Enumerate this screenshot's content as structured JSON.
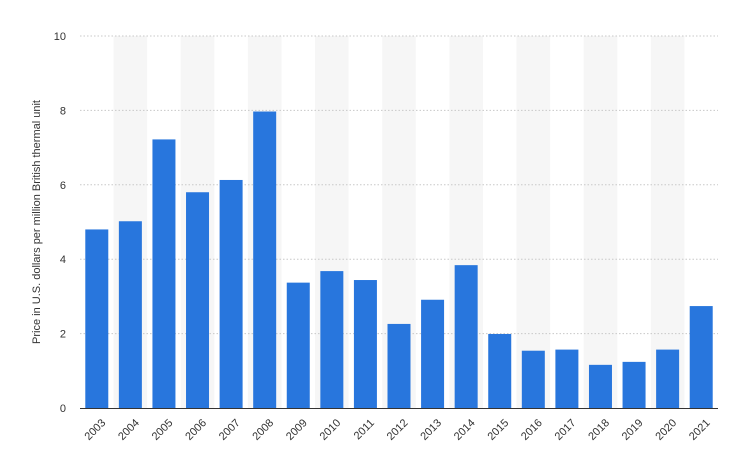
{
  "chart_data": {
    "type": "bar",
    "categories": [
      "2003",
      "2004",
      "2005",
      "2006",
      "2007",
      "2008",
      "2009",
      "2010",
      "2011",
      "2012",
      "2013",
      "2014",
      "2015",
      "2016",
      "2017",
      "2018",
      "2019",
      "2020",
      "2021"
    ],
    "values": [
      4.8,
      5.02,
      7.22,
      5.8,
      6.13,
      7.97,
      3.37,
      3.68,
      3.44,
      2.26,
      2.91,
      3.84,
      1.99,
      1.54,
      1.57,
      1.16,
      1.24,
      1.57,
      2.74
    ],
    "title": "",
    "xlabel": "",
    "ylabel": "Price in U.S. dollars per million British thermal unit",
    "ylim": [
      0,
      10
    ],
    "yticks": [
      "0",
      "2",
      "4",
      "6",
      "8",
      "10"
    ],
    "grid": true,
    "bar_color": "#2876dd",
    "band_color": "#f6f6f6"
  }
}
